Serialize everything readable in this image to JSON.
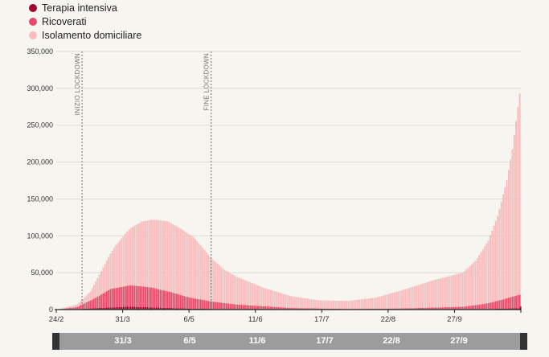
{
  "legend": [
    {
      "label": "Terapia intensiva",
      "color": "#a3002e"
    },
    {
      "label": "Ricoverati",
      "color": "#e84a6a"
    },
    {
      "label": "Isolamento domiciliare",
      "color": "#f7bcbc"
    }
  ],
  "slider": {
    "labels": [
      "31/3",
      "6/5",
      "11/6",
      "17/7",
      "22/8",
      "27/9"
    ]
  },
  "chart_data": {
    "type": "bar",
    "stacked": true,
    "title": "",
    "xlabel": "",
    "ylabel": "",
    "x_start": "24/2",
    "day_count": 252,
    "x_tick_labels": [
      "24/2",
      "31/3",
      "6/5",
      "11/6",
      "17/7",
      "22/8",
      "27/9"
    ],
    "ylim": [
      0,
      350000
    ],
    "y_tick_labels": [
      "0",
      "50,000",
      "100,000",
      "150,000",
      "200,000",
      "250,000",
      "300,000",
      "350,000"
    ],
    "grid": true,
    "annotations": [
      {
        "label": "INIZIO LOCKDOWN",
        "date": "9/3"
      },
      {
        "label": "FINE LOCKDOWN",
        "date": "18/5"
      }
    ],
    "series": [
      {
        "name": "Terapia intensiva",
        "color": "#a3002e",
        "anchors": [
          [
            "24/2",
            0
          ],
          [
            "6/3",
            500
          ],
          [
            "16/3",
            2000
          ],
          [
            "3/4",
            4000
          ],
          [
            "20/4",
            2600
          ],
          [
            "6/5",
            1300
          ],
          [
            "31/5",
            500
          ],
          [
            "30/6",
            150
          ],
          [
            "31/7",
            40
          ],
          [
            "25/8",
            70
          ],
          [
            "15/9",
            200
          ],
          [
            "1/10",
            300
          ],
          [
            "15/10",
            700
          ],
          [
            "2/11",
            2000
          ]
        ]
      },
      {
        "name": "Ricoverati",
        "color": "#e84a6a",
        "anchors": [
          [
            "24/2",
            0
          ],
          [
            "6/3",
            3000
          ],
          [
            "16/3",
            14000
          ],
          [
            "24/3",
            25000
          ],
          [
            "4/4",
            29000
          ],
          [
            "15/4",
            27000
          ],
          [
            "25/4",
            22000
          ],
          [
            "6/5",
            15000
          ],
          [
            "18/5",
            10000
          ],
          [
            "31/5",
            6500
          ],
          [
            "30/6",
            2000
          ],
          [
            "31/7",
            750
          ],
          [
            "31/8",
            1500
          ],
          [
            "15/9",
            2500
          ],
          [
            "1/10",
            3500
          ],
          [
            "8/10",
            5500
          ],
          [
            "15/10",
            8000
          ],
          [
            "22/10",
            12000
          ],
          [
            "2/11",
            19000
          ]
        ]
      },
      {
        "name": "Isolamento domiciliare",
        "color": "#f7bcbc",
        "anchors": [
          [
            "24/2",
            0
          ],
          [
            "6/3",
            3500
          ],
          [
            "13/3",
            12000
          ],
          [
            "20/3",
            35000
          ],
          [
            "27/3",
            58000
          ],
          [
            "3/4",
            76000
          ],
          [
            "10/4",
            88000
          ],
          [
            "17/4",
            93000
          ],
          [
            "24/4",
            95000
          ],
          [
            "1/5",
            90000
          ],
          [
            "8/5",
            83000
          ],
          [
            "18/5",
            58000
          ],
          [
            "25/5",
            45000
          ],
          [
            "31/5",
            38000
          ],
          [
            "15/6",
            25000
          ],
          [
            "30/6",
            16000
          ],
          [
            "15/7",
            11000
          ],
          [
            "31/7",
            11000
          ],
          [
            "15/8",
            15000
          ],
          [
            "31/8",
            26000
          ],
          [
            "15/9",
            37000
          ],
          [
            "1/10",
            46000
          ],
          [
            "8/10",
            60000
          ],
          [
            "15/10",
            85000
          ],
          [
            "20/10",
            115000
          ],
          [
            "25/10",
            160000
          ],
          [
            "28/10",
            200000
          ],
          [
            "31/10",
            255000
          ],
          [
            "2/11",
            290000
          ]
        ]
      }
    ]
  }
}
